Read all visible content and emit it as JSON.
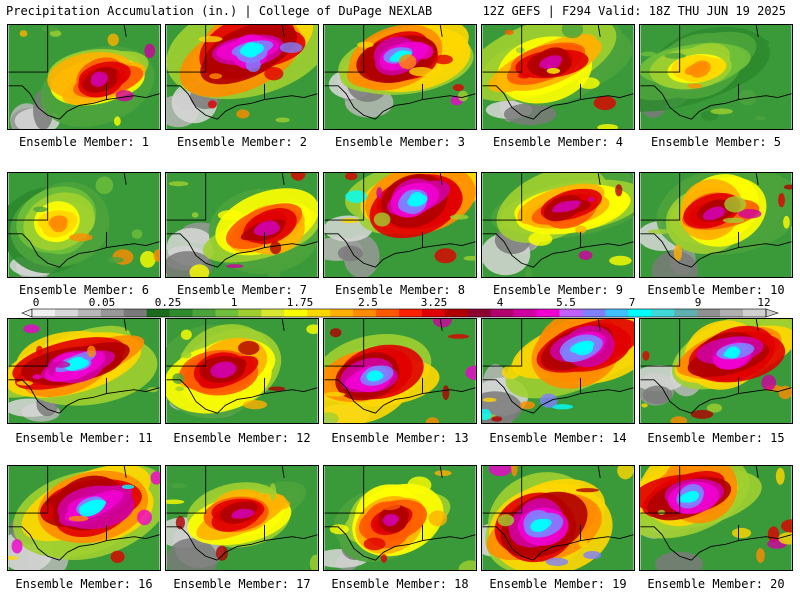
{
  "header": {
    "title": "Precipitation Accumulation (in.) | College of DuPage NEXLAB",
    "run_info": "12Z GEFS | F294 Valid: 18Z THU JUN 19 2025"
  },
  "panels": [
    {
      "label": "Ensemble Member: 1",
      "pattern": "moderate"
    },
    {
      "label": "Ensemble Member: 2",
      "pattern": "heavy"
    },
    {
      "label": "Ensemble Member: 3",
      "pattern": "heavy"
    },
    {
      "label": "Ensemble Member: 4",
      "pattern": "moderate"
    },
    {
      "label": "Ensemble Member: 5",
      "pattern": "light"
    },
    {
      "label": "Ensemble Member: 6",
      "pattern": "light"
    },
    {
      "label": "Ensemble Member: 7",
      "pattern": "moderate"
    },
    {
      "label": "Ensemble Member: 8",
      "pattern": "heavy"
    },
    {
      "label": "Ensemble Member: 9",
      "pattern": "moderate"
    },
    {
      "label": "Ensemble Member: 10",
      "pattern": "moderate"
    },
    {
      "label": "Ensemble Member: 11",
      "pattern": "heavy"
    },
    {
      "label": "Ensemble Member: 12",
      "pattern": "moderate"
    },
    {
      "label": "Ensemble Member: 13",
      "pattern": "heavy"
    },
    {
      "label": "Ensemble Member: 14",
      "pattern": "heavy"
    },
    {
      "label": "Ensemble Member: 15",
      "pattern": "heavy"
    },
    {
      "label": "Ensemble Member: 16",
      "pattern": "heavy"
    },
    {
      "label": "Ensemble Member: 17",
      "pattern": "moderate"
    },
    {
      "label": "Ensemble Member: 18",
      "pattern": "moderate"
    },
    {
      "label": "Ensemble Member: 19",
      "pattern": "heavy"
    },
    {
      "label": "Ensemble Member: 20",
      "pattern": "heavy"
    }
  ],
  "colorbar": {
    "labels": [
      "0",
      "0.05",
      "0.25",
      "1",
      "1.75",
      "2.5",
      "3.25",
      "4",
      "5.5",
      "7",
      "9",
      "12"
    ],
    "colors": [
      "#f0f0f0",
      "#d8d8d8",
      "#b8b8b8",
      "#989898",
      "#7a7a7a",
      "#1c6b1c",
      "#2e8b2e",
      "#4ca33c",
      "#6fbf3a",
      "#a0d030",
      "#d8e830",
      "#ffff00",
      "#ffd700",
      "#ffb000",
      "#ff8c00",
      "#ff5a00",
      "#ff2000",
      "#e00000",
      "#b00000",
      "#8b0030",
      "#b0006e",
      "#d000a0",
      "#f000d0",
      "#c060ff",
      "#8080ff",
      "#40c0ff",
      "#00ffff",
      "#40d8d8",
      "#60b0b0",
      "#909090",
      "#b0b0b0",
      "#d0d0d0"
    ]
  }
}
